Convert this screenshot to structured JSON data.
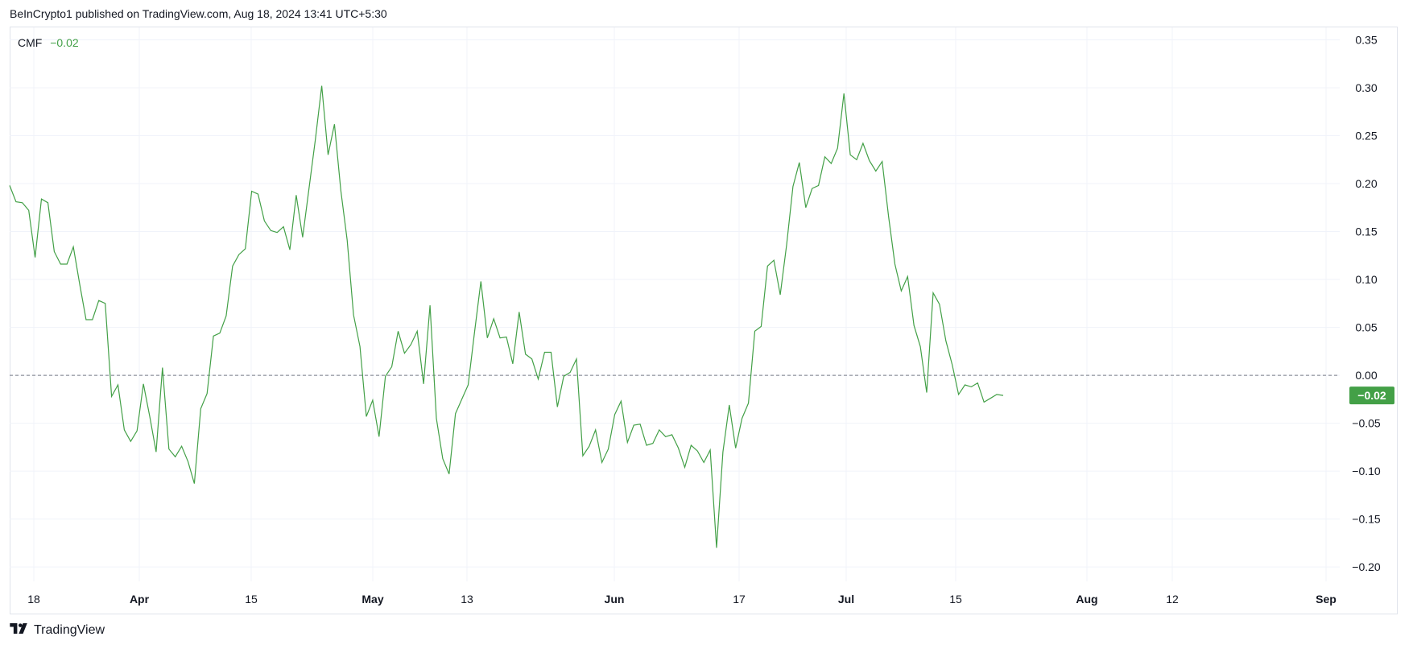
{
  "header": {
    "text": "BeInCrypto1 published on TradingView.com, Aug 18, 2024 13:41 UTC+5:30"
  },
  "legend": {
    "name": "CMF",
    "value": "−0.02"
  },
  "last_value_badge": "−0.02",
  "footer": {
    "brand": "TradingView"
  },
  "colors": {
    "line": "#43a047",
    "badge": "#43a047",
    "grid": "#f0f3fa",
    "zero_line": "#787b86",
    "axis_text": "#131722"
  },
  "chart_data": {
    "type": "line",
    "series": [
      {
        "name": "CMF",
        "color": "#43a047",
        "values": [
          0.198,
          0.181,
          0.18,
          0.172,
          0.123,
          0.184,
          0.18,
          0.129,
          0.116,
          0.116,
          0.134,
          0.095,
          0.058,
          0.058,
          0.078,
          0.075,
          -0.022,
          -0.01,
          -0.057,
          -0.069,
          -0.058,
          -0.009,
          -0.043,
          -0.08,
          0.008,
          -0.077,
          -0.085,
          -0.074,
          -0.09,
          -0.113,
          -0.035,
          -0.019,
          0.041,
          0.044,
          0.062,
          0.114,
          0.126,
          0.132,
          0.192,
          0.189,
          0.161,
          0.151,
          0.149,
          0.155,
          0.131,
          0.188,
          0.144,
          0.195,
          0.246,
          0.302,
          0.23,
          0.262,
          0.193,
          0.141,
          0.063,
          0.03,
          -0.043,
          -0.026,
          -0.064,
          -0.001,
          0.009,
          0.046,
          0.023,
          0.032,
          0.046,
          -0.009,
          0.073,
          -0.045,
          -0.087,
          -0.103,
          -0.04,
          -0.025,
          -0.01,
          0.045,
          0.098,
          0.039,
          0.059,
          0.039,
          0.04,
          0.012,
          0.066,
          0.022,
          0.017,
          -0.004,
          0.024,
          0.024,
          -0.033,
          -0.001,
          0.003,
          0.017,
          -0.084,
          -0.074,
          -0.057,
          -0.091,
          -0.077,
          -0.041,
          -0.027,
          -0.07,
          -0.052,
          -0.051,
          -0.073,
          -0.071,
          -0.057,
          -0.064,
          -0.062,
          -0.076,
          -0.096,
          -0.073,
          -0.079,
          -0.091,
          -0.078,
          -0.18,
          -0.08,
          -0.031,
          -0.076,
          -0.045,
          -0.029,
          0.046,
          0.051,
          0.114,
          0.12,
          0.084,
          0.136,
          0.197,
          0.222,
          0.175,
          0.195,
          0.198,
          0.228,
          0.221,
          0.237,
          0.294,
          0.23,
          0.225,
          0.242,
          0.224,
          0.213,
          0.223,
          0.166,
          0.116,
          0.088,
          0.103,
          0.052,
          0.03,
          -0.018,
          0.086,
          0.074,
          0.036,
          0.011,
          -0.02,
          -0.01,
          -0.012,
          -0.008,
          -0.028,
          -0.024,
          -0.02,
          -0.021
        ]
      }
    ],
    "x_tick_labels": [
      "18",
      "Apr",
      "15",
      "May",
      "13",
      "Jun",
      "17",
      "Jul",
      "15",
      "Aug",
      "12",
      "Sep"
    ],
    "y_tick_labels": [
      "0.35",
      "0.30",
      "0.25",
      "0.20",
      "0.15",
      "0.10",
      "0.05",
      "0.00",
      "−0.05",
      "−0.10",
      "−0.15",
      "−0.20"
    ],
    "y_ticks": [
      0.35,
      0.3,
      0.25,
      0.2,
      0.15,
      0.1,
      0.05,
      0.0,
      -0.05,
      -0.1,
      -0.15,
      -0.2
    ],
    "ylim": [
      -0.215,
      0.363
    ],
    "zero_line": 0.0,
    "grid": true,
    "legend_position": "top-left"
  }
}
